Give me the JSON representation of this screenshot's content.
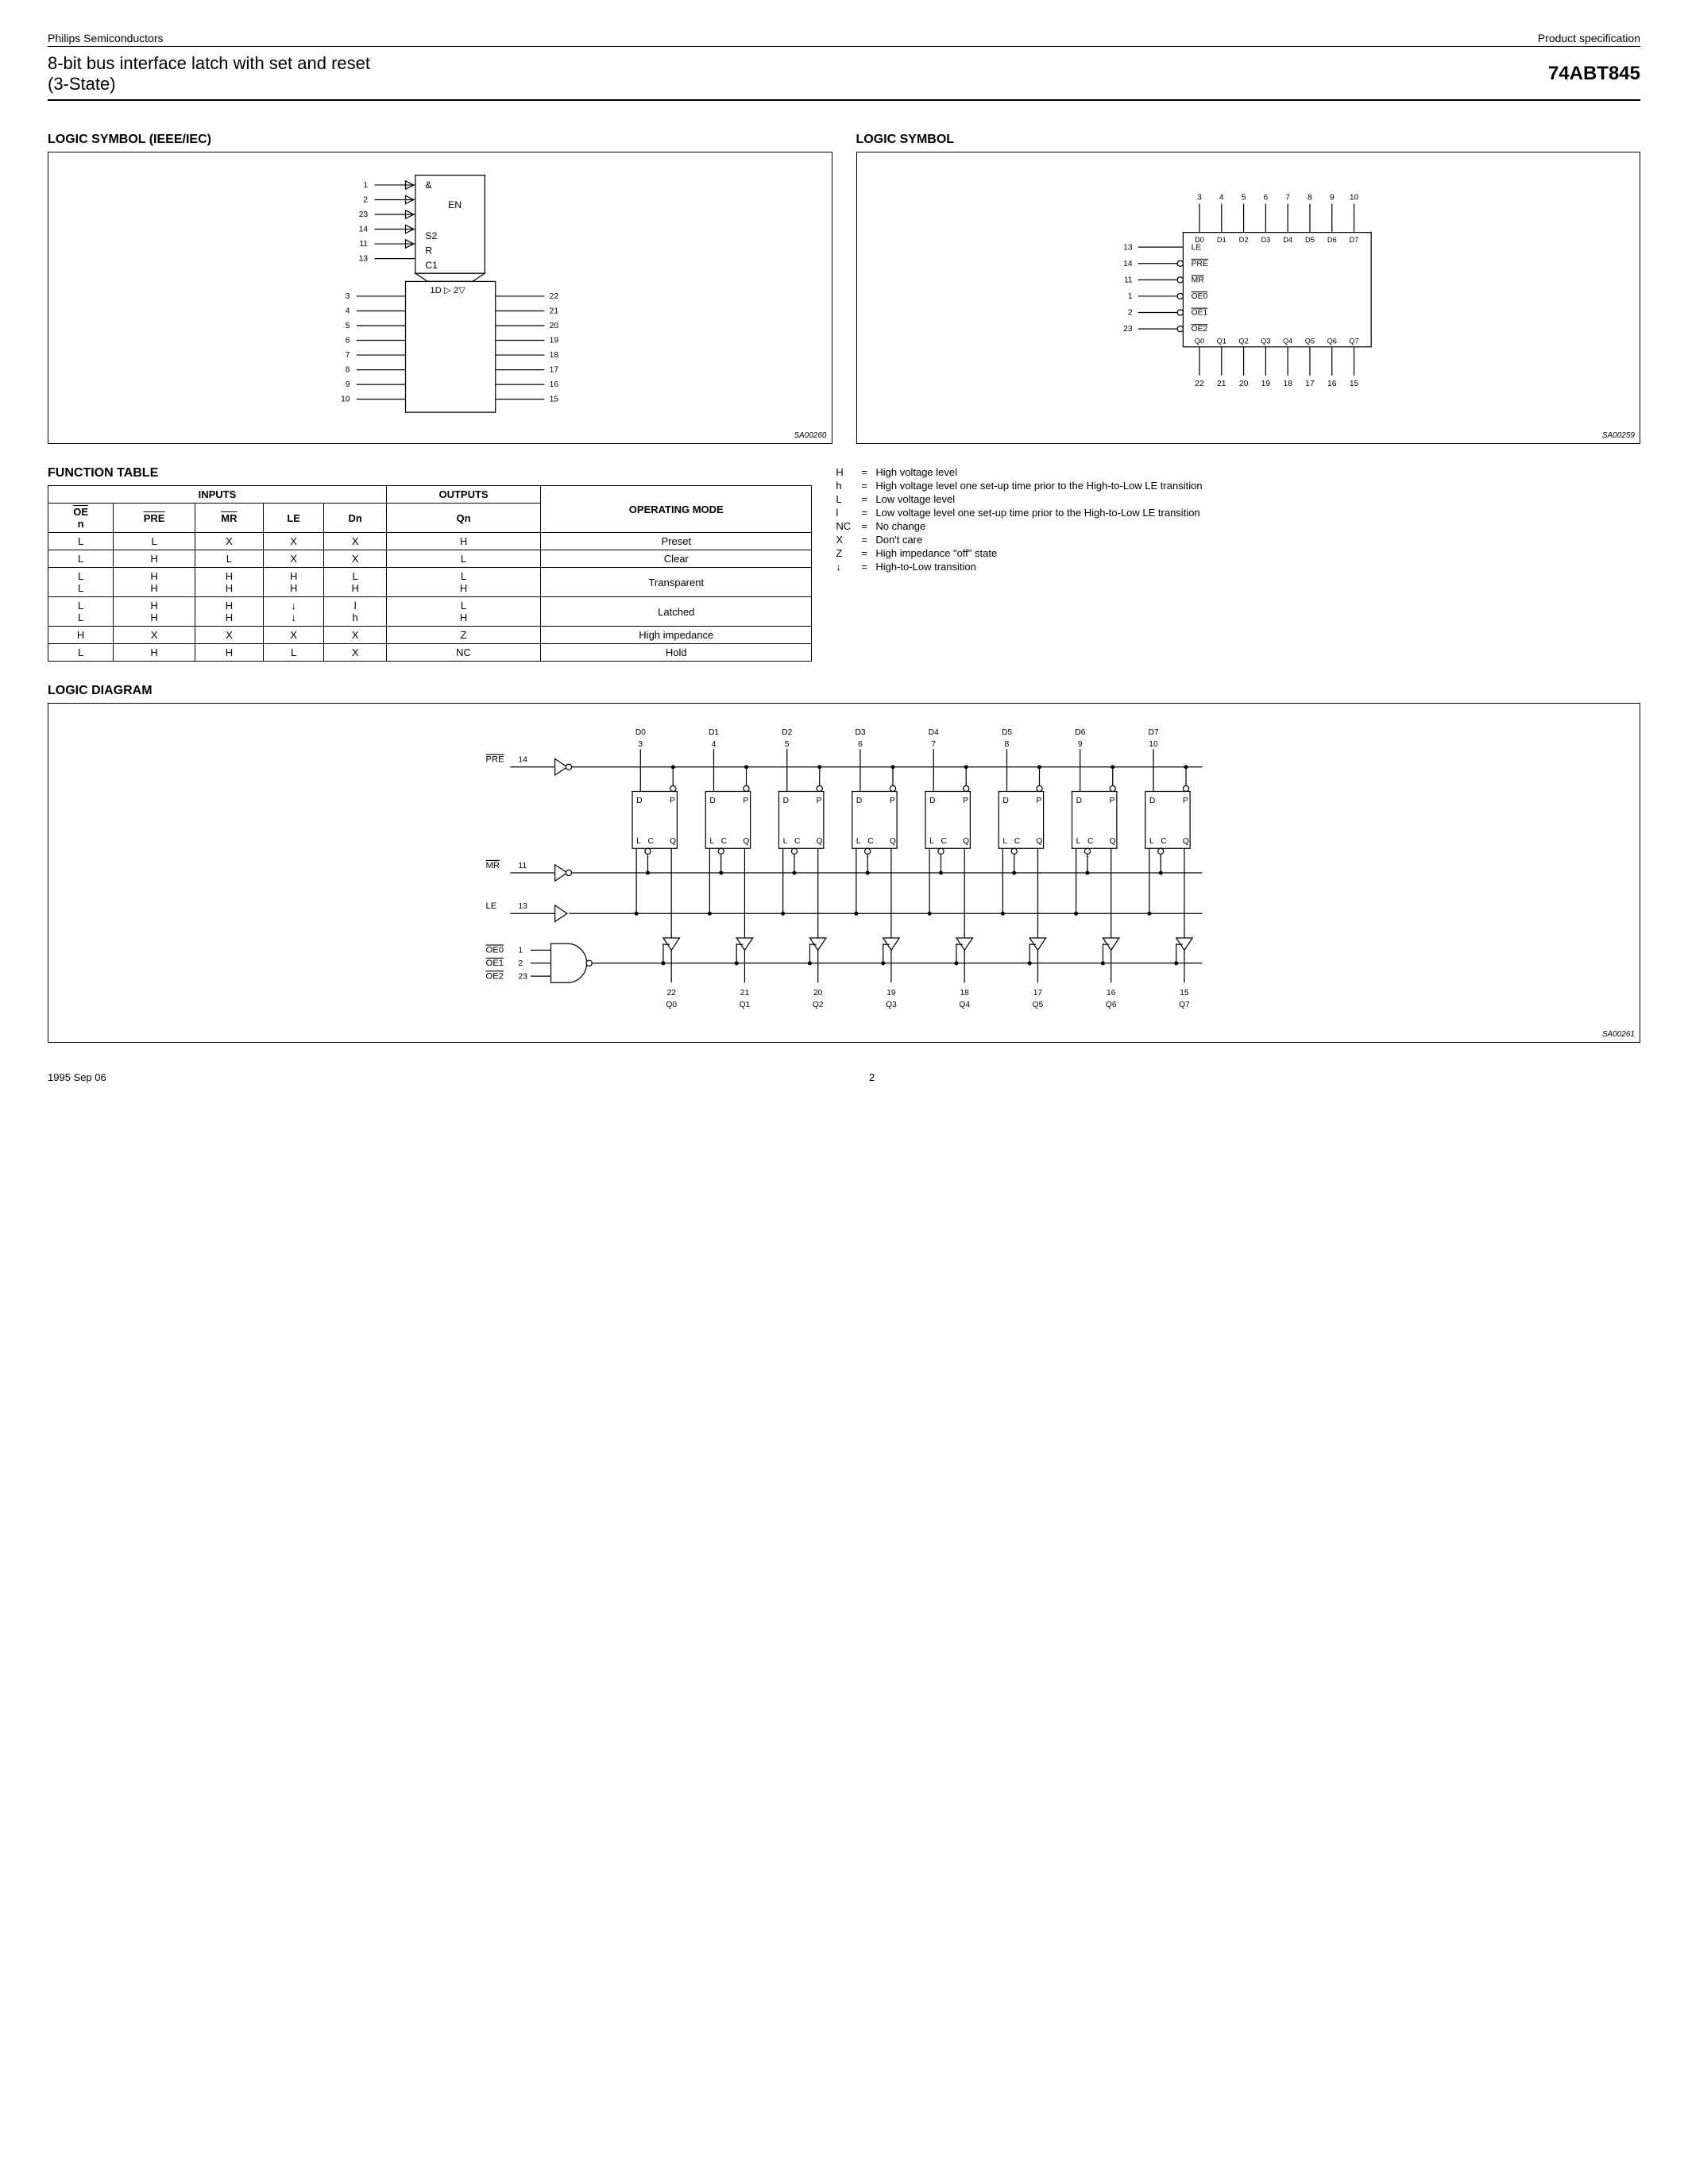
{
  "header": {
    "left": "Philips Semiconductors",
    "right": "Product specification"
  },
  "title": {
    "left_line1": "8-bit bus interface latch with set and reset",
    "left_line2": "(3-State)",
    "right": "74ABT845"
  },
  "sections": {
    "ieee_symbol": {
      "title": "LOGIC SYMBOL (IEEE/IEC)",
      "ref": "SA00260",
      "ctrl_pins": [
        "1",
        "2",
        "23",
        "14",
        "11",
        "13"
      ],
      "ctrl_labels": [
        "&",
        "EN",
        "S2",
        "R",
        "C1"
      ],
      "body_label": "1D ▷ 2▽",
      "left_pins": [
        "3",
        "4",
        "5",
        "6",
        "7",
        "8",
        "9",
        "10"
      ],
      "right_pins": [
        "22",
        "21",
        "20",
        "19",
        "18",
        "17",
        "16",
        "15"
      ]
    },
    "logic_symbol": {
      "title": "LOGIC SYMBOL",
      "ref": "SA00259",
      "top_pins": [
        "3",
        "4",
        "5",
        "6",
        "7",
        "8",
        "9",
        "10"
      ],
      "top_labels": [
        "D0",
        "D1",
        "D2",
        "D3",
        "D4",
        "D5",
        "D6",
        "D7"
      ],
      "left_rows": [
        {
          "pin": "13",
          "label": "LE",
          "bubble": false
        },
        {
          "pin": "14",
          "label": "PRE",
          "bubble": true,
          "ov": true
        },
        {
          "pin": "11",
          "label": "MR",
          "bubble": true,
          "ov": true
        },
        {
          "pin": "1",
          "label": "OE0",
          "bubble": true,
          "ov": true
        },
        {
          "pin": "2",
          "label": "OE1",
          "bubble": true,
          "ov": true
        },
        {
          "pin": "23",
          "label": "OE2",
          "bubble": true,
          "ov": true
        }
      ],
      "bot_labels": [
        "Q0",
        "Q1",
        "Q2",
        "Q3",
        "Q4",
        "Q5",
        "Q6",
        "Q7"
      ],
      "bot_pins": [
        "22",
        "21",
        "20",
        "19",
        "18",
        "17",
        "16",
        "15"
      ]
    },
    "function_table": {
      "title": "FUNCTION TABLE",
      "head_inputs": "INPUTS",
      "head_outputs": "OUTPUTS",
      "head_mode": "OPERATING MODE",
      "cols": [
        "OE n",
        "PRE",
        "MR",
        "LE",
        "Dn",
        "Qn"
      ],
      "cols_ov": [
        true,
        true,
        true,
        false,
        false,
        false
      ],
      "rows": [
        {
          "c": [
            "L",
            "L",
            "X",
            "X",
            "X",
            "H"
          ],
          "mode": "Preset"
        },
        {
          "c": [
            "L",
            "H",
            "L",
            "X",
            "X",
            "L"
          ],
          "mode": "Clear"
        },
        {
          "c": [
            "L\nL",
            "H\nH",
            "H\nH",
            "H\nH",
            "L\nH",
            "L\nH"
          ],
          "mode": "Transparent"
        },
        {
          "c": [
            "L\nL",
            "H\nH",
            "H\nH",
            "↓\n↓",
            "l\nh",
            "L\nH"
          ],
          "mode": "Latched"
        },
        {
          "c": [
            "H",
            "X",
            "X",
            "X",
            "X",
            "Z"
          ],
          "mode": "High impedance"
        },
        {
          "c": [
            "L",
            "H",
            "H",
            "L",
            "X",
            "NC"
          ],
          "mode": "Hold"
        }
      ]
    },
    "legend": [
      {
        "k": "H",
        "d": "High voltage level"
      },
      {
        "k": "h",
        "d": "High voltage level one set-up time prior to the High-to-Low LE transition"
      },
      {
        "k": "L",
        "d": "Low voltage level"
      },
      {
        "k": "l",
        "d": "Low voltage level one set-up time prior to the High-to-Low LE transition"
      },
      {
        "k": "NC",
        "d": "No change"
      },
      {
        "k": "X",
        "d": "Don't care"
      },
      {
        "k": "Z",
        "d": "High impedance \"off\" state"
      },
      {
        "k": "↓",
        "d": "High-to-Low transition"
      }
    ],
    "logic_diagram": {
      "title": "LOGIC DIAGRAM",
      "ref": "SA00261",
      "d_labels": [
        "D0",
        "D1",
        "D2",
        "D3",
        "D4",
        "D5",
        "D6",
        "D7"
      ],
      "d_pins": [
        "3",
        "4",
        "5",
        "6",
        "7",
        "8",
        "9",
        "10"
      ],
      "q_labels": [
        "Q0",
        "Q1",
        "Q2",
        "Q3",
        "Q4",
        "Q5",
        "Q6",
        "Q7"
      ],
      "q_pins": [
        "22",
        "21",
        "20",
        "19",
        "18",
        "17",
        "16",
        "15"
      ],
      "left_signals": [
        {
          "label": "PRE",
          "pin": "14",
          "ov": true
        },
        {
          "label": "MR",
          "pin": "11",
          "ov": true
        },
        {
          "label": "LE",
          "pin": "13",
          "ov": false
        },
        {
          "label": "OE0",
          "pin": "1",
          "ov": true
        },
        {
          "label": "OE1",
          "pin": "2",
          "ov": true
        },
        {
          "label": "OE2",
          "pin": "23",
          "ov": true
        }
      ],
      "latch_pins": {
        "D": "D",
        "P": "P",
        "L": "L",
        "C": "C",
        "Q": "Q"
      }
    }
  },
  "footer": {
    "date": "1995 Sep 06",
    "page": "2"
  }
}
